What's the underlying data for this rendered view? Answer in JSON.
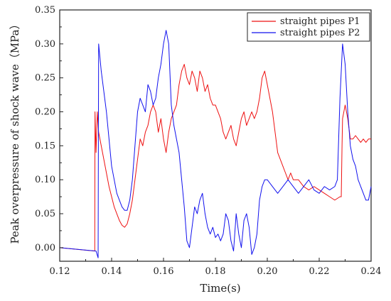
{
  "chart_data": {
    "type": "line",
    "xlabel": "Time(s)",
    "ylabel": "Peak overpressure of shock wave（MPa）",
    "xlim": [
      0.12,
      0.24
    ],
    "ylim": [
      -0.02,
      0.35
    ],
    "xticks": [
      "0.12",
      "0.14",
      "0.16",
      "0.18",
      "0.20",
      "0.22",
      "0.24"
    ],
    "yticks": [
      "0.00",
      "0.05",
      "0.10",
      "0.15",
      "0.20",
      "0.25",
      "0.30",
      "0.35"
    ],
    "grid": false,
    "legend_position": "top-right",
    "series": [
      {
        "name": "straight pipes P1",
        "color": "#ee1111",
        "x": [
          0.12,
          0.1335,
          0.1336,
          0.134,
          0.1345,
          0.135,
          0.136,
          0.137,
          0.138,
          0.139,
          0.14,
          0.141,
          0.142,
          0.143,
          0.144,
          0.145,
          0.146,
          0.147,
          0.148,
          0.149,
          0.15,
          0.151,
          0.152,
          0.153,
          0.154,
          0.155,
          0.156,
          0.157,
          0.158,
          0.159,
          0.16,
          0.161,
          0.162,
          0.163,
          0.164,
          0.165,
          0.166,
          0.167,
          0.168,
          0.169,
          0.17,
          0.171,
          0.172,
          0.173,
          0.174,
          0.175,
          0.176,
          0.177,
          0.178,
          0.179,
          0.18,
          0.181,
          0.182,
          0.183,
          0.184,
          0.185,
          0.186,
          0.187,
          0.188,
          0.189,
          0.19,
          0.191,
          0.192,
          0.193,
          0.194,
          0.195,
          0.196,
          0.197,
          0.198,
          0.199,
          0.2,
          0.201,
          0.202,
          0.203,
          0.204,
          0.205,
          0.206,
          0.207,
          0.208,
          0.209,
          0.21,
          0.212,
          0.214,
          0.216,
          0.218,
          0.22,
          0.222,
          0.224,
          0.226,
          0.228,
          0.2285,
          0.2288,
          0.229,
          0.23,
          0.231,
          0.232,
          0.233,
          0.234,
          0.235,
          0.236,
          0.237,
          0.238,
          0.239,
          0.24
        ],
        "y": [
          0.0,
          -0.005,
          0.2,
          0.14,
          0.2,
          0.17,
          0.15,
          0.13,
          0.11,
          0.09,
          0.075,
          0.06,
          0.05,
          0.04,
          0.033,
          0.03,
          0.035,
          0.05,
          0.07,
          0.1,
          0.13,
          0.16,
          0.15,
          0.17,
          0.18,
          0.2,
          0.21,
          0.2,
          0.17,
          0.19,
          0.16,
          0.14,
          0.17,
          0.19,
          0.2,
          0.21,
          0.24,
          0.26,
          0.27,
          0.25,
          0.24,
          0.26,
          0.25,
          0.23,
          0.26,
          0.25,
          0.23,
          0.24,
          0.22,
          0.21,
          0.21,
          0.2,
          0.19,
          0.17,
          0.16,
          0.17,
          0.18,
          0.16,
          0.15,
          0.17,
          0.19,
          0.2,
          0.18,
          0.19,
          0.2,
          0.19,
          0.2,
          0.22,
          0.25,
          0.26,
          0.24,
          0.22,
          0.2,
          0.17,
          0.14,
          0.13,
          0.12,
          0.11,
          0.1,
          0.11,
          0.1,
          0.1,
          0.09,
          0.085,
          0.09,
          0.085,
          0.08,
          0.075,
          0.07,
          0.075,
          0.075,
          0.15,
          0.19,
          0.21,
          0.19,
          0.16,
          0.16,
          0.165,
          0.16,
          0.155,
          0.16,
          0.155,
          0.16,
          0.16
        ]
      },
      {
        "name": "straight pipes P2",
        "color": "#1111ee",
        "x": [
          0.12,
          0.134,
          0.1348,
          0.1349,
          0.135,
          0.1355,
          0.136,
          0.137,
          0.138,
          0.139,
          0.14,
          0.141,
          0.142,
          0.143,
          0.144,
          0.145,
          0.146,
          0.147,
          0.148,
          0.149,
          0.15,
          0.151,
          0.152,
          0.153,
          0.154,
          0.155,
          0.156,
          0.157,
          0.158,
          0.159,
          0.16,
          0.161,
          0.162,
          0.163,
          0.164,
          0.165,
          0.166,
          0.167,
          0.168,
          0.169,
          0.17,
          0.171,
          0.172,
          0.173,
          0.174,
          0.175,
          0.176,
          0.177,
          0.178,
          0.179,
          0.18,
          0.181,
          0.182,
          0.183,
          0.184,
          0.185,
          0.186,
          0.187,
          0.188,
          0.189,
          0.19,
          0.191,
          0.192,
          0.193,
          0.194,
          0.195,
          0.196,
          0.197,
          0.198,
          0.199,
          0.2,
          0.202,
          0.204,
          0.206,
          0.208,
          0.21,
          0.212,
          0.214,
          0.216,
          0.218,
          0.22,
          0.222,
          0.224,
          0.226,
          0.227,
          0.228,
          0.229,
          0.23,
          0.231,
          0.232,
          0.233,
          0.234,
          0.235,
          0.236,
          0.237,
          0.238,
          0.239,
          0.24
        ],
        "y": [
          0.0,
          -0.005,
          -0.015,
          0.15,
          0.3,
          0.28,
          0.26,
          0.23,
          0.2,
          0.16,
          0.12,
          0.1,
          0.08,
          0.07,
          0.06,
          0.055,
          0.055,
          0.07,
          0.1,
          0.15,
          0.2,
          0.22,
          0.21,
          0.2,
          0.24,
          0.23,
          0.21,
          0.22,
          0.25,
          0.27,
          0.3,
          0.32,
          0.3,
          0.21,
          0.18,
          0.16,
          0.14,
          0.1,
          0.06,
          0.01,
          0.0,
          0.03,
          0.06,
          0.05,
          0.07,
          0.08,
          0.05,
          0.03,
          0.02,
          0.03,
          0.015,
          0.02,
          0.01,
          0.02,
          0.05,
          0.04,
          0.01,
          -0.005,
          0.05,
          0.02,
          0.0,
          0.04,
          0.05,
          0.03,
          -0.01,
          0.0,
          0.02,
          0.07,
          0.09,
          0.1,
          0.1,
          0.09,
          0.08,
          0.09,
          0.1,
          0.09,
          0.08,
          0.09,
          0.1,
          0.085,
          0.08,
          0.09,
          0.085,
          0.09,
          0.1,
          0.22,
          0.3,
          0.27,
          0.2,
          0.15,
          0.13,
          0.12,
          0.1,
          0.09,
          0.08,
          0.07,
          0.07,
          0.09
        ]
      }
    ]
  }
}
